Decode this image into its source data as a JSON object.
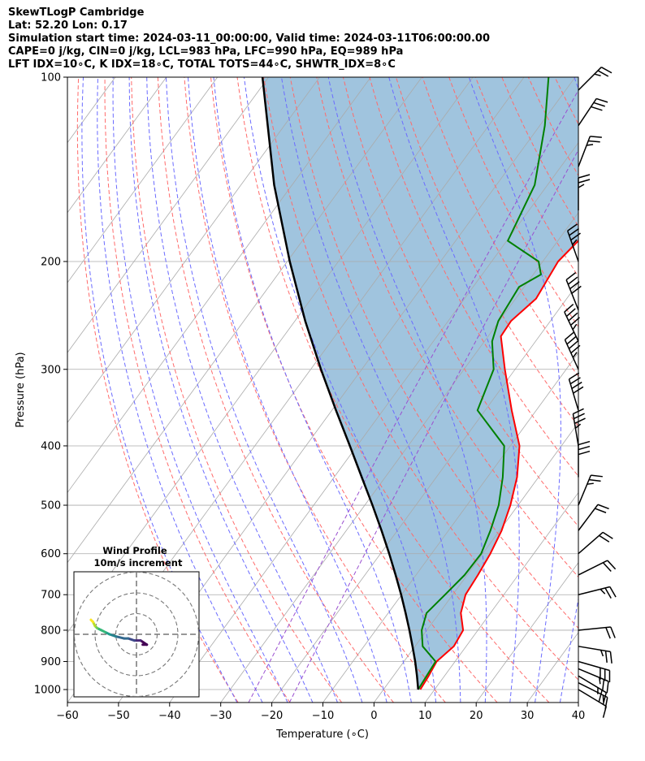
{
  "header": {
    "line1": "SkewTLogP Cambridge",
    "line2": "Lat: 52.20   Lon: 0.17",
    "line3": "Simulation start time: 2024-03-11_00:00:00, Valid time: 2024-03-11T06:00:00.00",
    "line4": "CAPE=0 j/kg, CIN=0 j/kg, LCL=983 hPa, LFC=990 hPa, EQ=989 hPa",
    "line5": "LFT IDX=10∘C, K IDX=18∘C, TOTAL TOTS=44∘C, SHWTR_IDX=8∘C"
  },
  "chart_data": [
    {
      "type": "line",
      "subtype": "skew-T log-P",
      "xlabel": "Temperature (∘C)",
      "ylabel": "Pressure (hPa)",
      "xlim": [
        -60,
        40
      ],
      "ylim": [
        1050,
        100
      ],
      "y_scale": "log",
      "grid": true,
      "x_ticks": [
        -60,
        -50,
        -40,
        -30,
        -20,
        -10,
        0,
        10,
        20,
        30,
        40
      ],
      "y_ticks": [
        100,
        200,
        300,
        400,
        500,
        600,
        700,
        800,
        900,
        1000
      ],
      "x_tick_labels": [
        "−60",
        "−50",
        "−40",
        "−30",
        "−20",
        "−10",
        "0",
        "10",
        "20",
        "30",
        "40"
      ],
      "y_tick_labels": [
        "100",
        "200",
        "300",
        "400",
        "500",
        "600",
        "700",
        "800",
        "900",
        "1000"
      ],
      "colors": {
        "temperature": "#ff0000",
        "dewpoint": "#008000",
        "parcel": "#000000",
        "fill": "#a0c4de",
        "isotherm": "#aaaaaa",
        "dry_adiabat": "#ff6b6b",
        "moist_adiabat": "#6b6bff",
        "mixing_ratio": "#9a4fd0"
      },
      "series": [
        {
          "role": "temperature",
          "points": [
            [
              1000,
              7.2
            ],
            [
              950,
              6.9
            ],
            [
              900,
              6.4
            ],
            [
              850,
              7.6
            ],
            [
              800,
              7.1
            ],
            [
              750,
              4.2
            ],
            [
              700,
              2.5
            ],
            [
              650,
              2.1
            ],
            [
              600,
              1.5
            ],
            [
              550,
              0.4
            ],
            [
              500,
              -1.5
            ],
            [
              450,
              -4.2
            ],
            [
              400,
              -8.2
            ],
            [
              350,
              -14.8
            ],
            [
              300,
              -22.0
            ],
            [
              265,
              -27.5
            ],
            [
              250,
              -27.7
            ],
            [
              230,
              -26.0
            ],
            [
              200,
              -27.0
            ],
            [
              185,
              -26.0
            ],
            [
              160,
              -28.5
            ],
            [
              140,
              -32.5
            ],
            [
              120,
              -37.5
            ],
            [
              100,
              -43.8
            ]
          ]
        },
        {
          "role": "dewpoint",
          "points": [
            [
              1000,
              6.8
            ],
            [
              950,
              6.5
            ],
            [
              900,
              6.2
            ],
            [
              850,
              1.5
            ],
            [
              800,
              -1.0
            ],
            [
              750,
              -2.5
            ],
            [
              700,
              -1.5
            ],
            [
              650,
              -0.5
            ],
            [
              600,
              -0.3
            ],
            [
              550,
              -1.8
            ],
            [
              500,
              -3.8
            ],
            [
              450,
              -7.0
            ],
            [
              400,
              -11.2
            ],
            [
              350,
              -21.5
            ],
            [
              300,
              -24.2
            ],
            [
              270,
              -28.5
            ],
            [
              250,
              -30.2
            ],
            [
              220,
              -31.0
            ],
            [
              210,
              -28.5
            ],
            [
              200,
              -30.8
            ],
            [
              185,
              -39.8
            ],
            [
              150,
              -42.5
            ],
            [
              120,
              -49.0
            ],
            [
              100,
              -55.2
            ]
          ]
        },
        {
          "role": "parcel",
          "points": [
            [
              1000,
              6.8
            ],
            [
              950,
              4.6
            ],
            [
              900,
              2.2
            ],
            [
              850,
              -0.5
            ],
            [
              800,
              -3.4
            ],
            [
              750,
              -6.6
            ],
            [
              700,
              -10.1
            ],
            [
              650,
              -14.0
            ],
            [
              600,
              -18.3
            ],
            [
              550,
              -23.1
            ],
            [
              500,
              -28.5
            ],
            [
              450,
              -34.6
            ],
            [
              400,
              -41.4
            ],
            [
              350,
              -49.2
            ],
            [
              300,
              -58.0
            ],
            [
              250,
              -68.0
            ],
            [
              200,
              -79.5
            ],
            [
              150,
              -93.5
            ],
            [
              100,
              -111.2
            ]
          ]
        }
      ],
      "wind_barbs": [
        {
          "p": 1000,
          "u": 5,
          "v": -3
        },
        {
          "p": 975,
          "u": 8,
          "v": -4
        },
        {
          "p": 950,
          "u": 10,
          "v": -6
        },
        {
          "p": 925,
          "u": 12,
          "v": -5
        },
        {
          "p": 900,
          "u": 14,
          "v": -4
        },
        {
          "p": 850,
          "u": 12,
          "v": -2
        },
        {
          "p": 800,
          "u": 10,
          "v": 1
        },
        {
          "p": 700,
          "u": 12,
          "v": 3
        },
        {
          "p": 650,
          "u": 10,
          "v": 5
        },
        {
          "p": 600,
          "u": 8,
          "v": 7
        },
        {
          "p": 550,
          "u": 6,
          "v": 8
        },
        {
          "p": 500,
          "u": 5,
          "v": 12
        },
        {
          "p": 450,
          "u": 0,
          "v": 16
        },
        {
          "p": 400,
          "u": -3,
          "v": 18
        },
        {
          "p": 350,
          "u": -6,
          "v": 20
        },
        {
          "p": 300,
          "u": -10,
          "v": 22
        },
        {
          "p": 270,
          "u": -10,
          "v": 21
        },
        {
          "p": 240,
          "u": -8,
          "v": 20
        },
        {
          "p": 200,
          "u": -6,
          "v": 17
        },
        {
          "p": 165,
          "u": 0,
          "v": 14
        },
        {
          "p": 140,
          "u": 5,
          "v": 13
        },
        {
          "p": 120,
          "u": 8,
          "v": 12
        },
        {
          "p": 105,
          "u": 10,
          "v": 10
        }
      ]
    },
    {
      "type": "line",
      "subtype": "hodograph",
      "title": "Wind Profile",
      "subtitle": "10m/s increment",
      "rings": [
        10,
        20,
        30
      ],
      "points": [
        [
          3,
          -5
        ],
        [
          5,
          -5
        ],
        [
          2,
          -3
        ],
        [
          -1,
          -3
        ],
        [
          -4,
          -2
        ],
        [
          -6,
          -2
        ],
        [
          -10,
          -1
        ],
        [
          -13,
          0
        ],
        [
          -15,
          1
        ],
        [
          -17,
          2
        ],
        [
          -19,
          3
        ],
        [
          -20,
          4
        ],
        [
          -21,
          6
        ],
        [
          -22,
          7
        ]
      ],
      "colormap": "viridis"
    }
  ]
}
